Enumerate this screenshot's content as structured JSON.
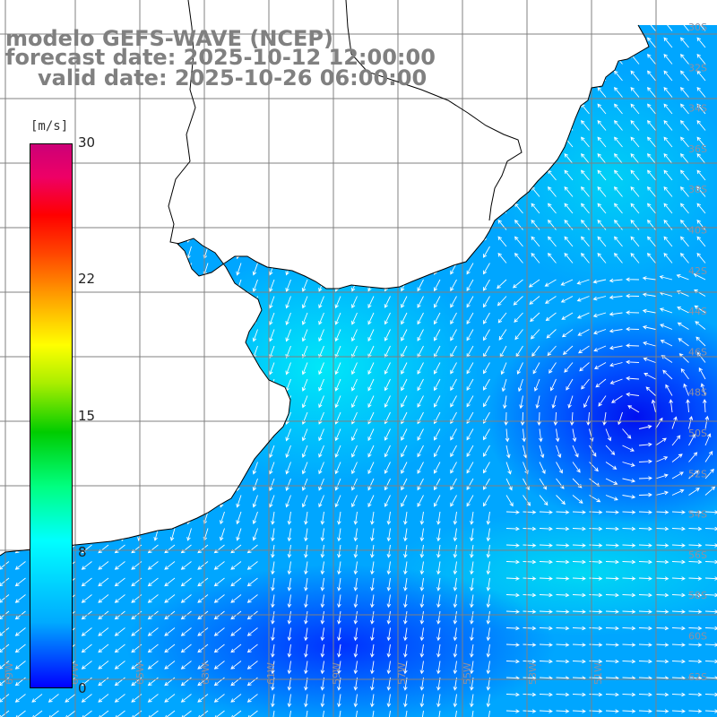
{
  "header": {
    "line1": "modelo GEFS-WAVE (NCEP)",
    "line2": "forecast date: 2025-10-12 12:00:00",
    "line3": "valid date: 2025-10-26 06:00:00"
  },
  "colorbar": {
    "unit": "[m/s]",
    "ticks": [
      "30",
      "22",
      "15",
      "8",
      "0"
    ],
    "stops": [
      {
        "value": 0,
        "color": "#0000ff"
      },
      {
        "value": 8,
        "color": "#00ffff"
      },
      {
        "value": 15,
        "color": "#ffff00"
      },
      {
        "value": 22,
        "color": "#ff4400"
      },
      {
        "value": 30,
        "color": "#cc0077"
      }
    ]
  },
  "latitude_labels": [
    "30S",
    "32S",
    "34S",
    "36S",
    "38S",
    "40S",
    "42S",
    "44S",
    "46S",
    "48S",
    "50S",
    "52S",
    "54S",
    "56S",
    "58S",
    "60S",
    "62S"
  ],
  "longitude_labels": [
    "69W",
    "67W",
    "65W",
    "63W",
    "61W",
    "59W",
    "57W",
    "55W",
    "53W",
    "51W"
  ],
  "colors": {
    "land": "#ffffff",
    "coast": "#000000",
    "grid": "#808080",
    "arrow": "#ffffff"
  }
}
